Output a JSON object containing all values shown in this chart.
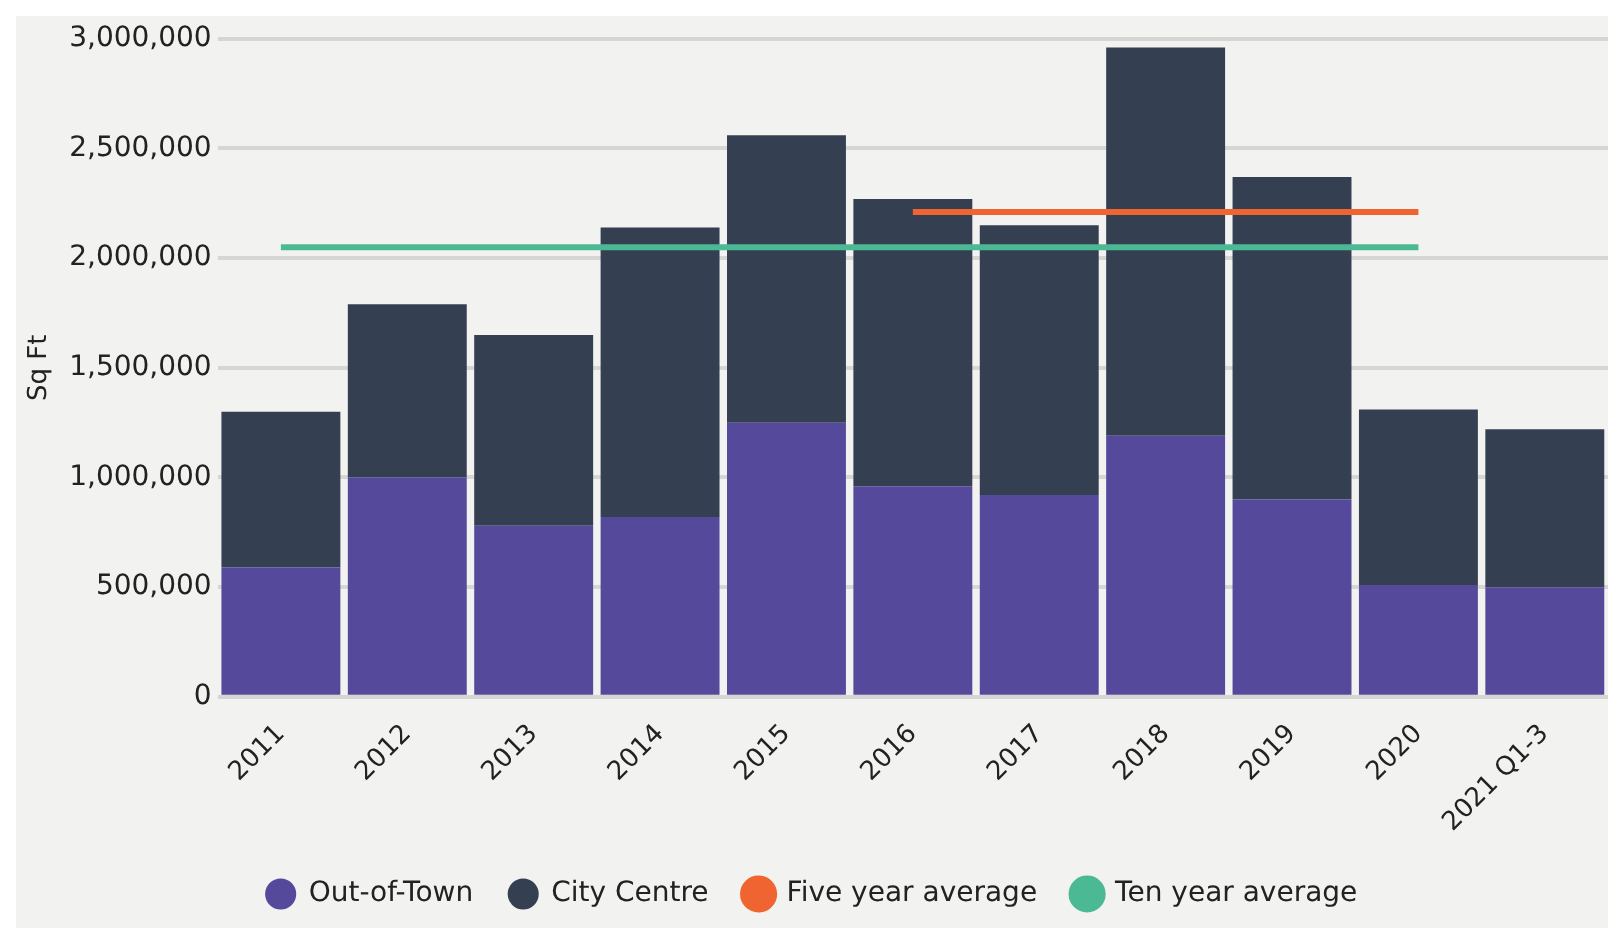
{
  "chart_data": {
    "type": "bar",
    "stacked": true,
    "ylabel": "Sq Ft",
    "categories": [
      "2011",
      "2012",
      "2013",
      "2014",
      "2015",
      "2016",
      "2017",
      "2018",
      "2019",
      "2020",
      "2021 Q1-3"
    ],
    "series": [
      {
        "name": "Out-of-Town",
        "color": "#55499c",
        "values": [
          590000,
          1000000,
          780000,
          820000,
          1250000,
          960000,
          920000,
          1190000,
          900000,
          510000,
          500000
        ]
      },
      {
        "name": "City Centre",
        "color": "#343f51",
        "values": [
          710000,
          790000,
          870000,
          1320000,
          1310000,
          1310000,
          1230000,
          1770000,
          1470000,
          800000,
          720000
        ]
      },
      {
        "name": "Five year average",
        "type": "line",
        "color": "#ef6430",
        "values": [
          null,
          null,
          null,
          null,
          null,
          2210000,
          2210000,
          2210000,
          2210000,
          2210000,
          null
        ]
      },
      {
        "name": "Ten year average",
        "type": "line",
        "color": "#4cb995",
        "values": [
          2050000,
          2050000,
          2050000,
          2050000,
          2050000,
          2050000,
          2050000,
          2050000,
          2050000,
          2050000,
          null
        ]
      }
    ],
    "ylim": [
      0,
      3000000
    ],
    "yticks": [
      0,
      {
        "value": 500000,
        "label": "500,000"
      },
      {
        "value": 1000000,
        "label": "1,000,000"
      },
      {
        "value": 1500000,
        "label": "1,500,000"
      },
      {
        "value": 2000000,
        "label": "2,000,000"
      },
      {
        "value": 2500000,
        "label": "2,500,000"
      },
      {
        "value": 3000000,
        "label": "3,000,000"
      }
    ],
    "grid": "y",
    "legend": "bottom",
    "marker": "none",
    "line_style": "solid"
  }
}
